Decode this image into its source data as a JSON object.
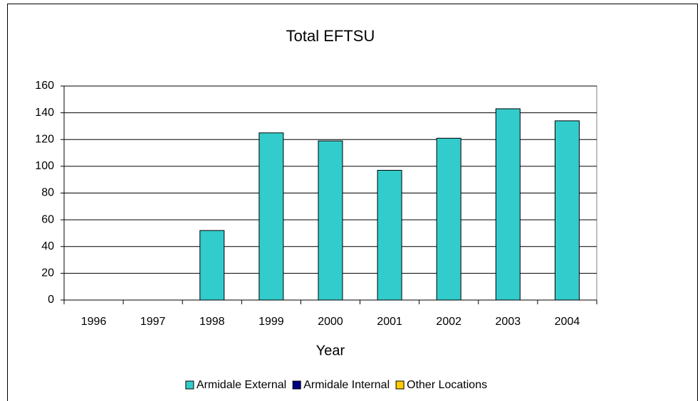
{
  "chart_data": {
    "type": "bar",
    "stacked": true,
    "title": "Total EFTSU",
    "x_label": "Year",
    "categories": [
      "1996",
      "1997",
      "1998",
      "1999",
      "2000",
      "2001",
      "2002",
      "2003",
      "2004"
    ],
    "series": [
      {
        "name": "Armidale External",
        "color": "#33cccc",
        "values": [
          0,
          0,
          52,
          125,
          119,
          97,
          121,
          143,
          134
        ]
      },
      {
        "name": "Armidale Internal",
        "color": "#000080",
        "values": [
          0,
          0,
          0,
          0,
          0,
          0,
          0,
          0,
          0
        ]
      },
      {
        "name": "Other Locations",
        "color": "#ffcc00",
        "values": [
          0,
          0,
          0,
          0,
          0,
          0,
          0,
          0,
          0
        ]
      }
    ],
    "ylim": [
      0,
      160
    ],
    "yticks": [
      0,
      20,
      40,
      60,
      80,
      100,
      120,
      140,
      160
    ],
    "grid": true,
    "legend": "bottom"
  }
}
